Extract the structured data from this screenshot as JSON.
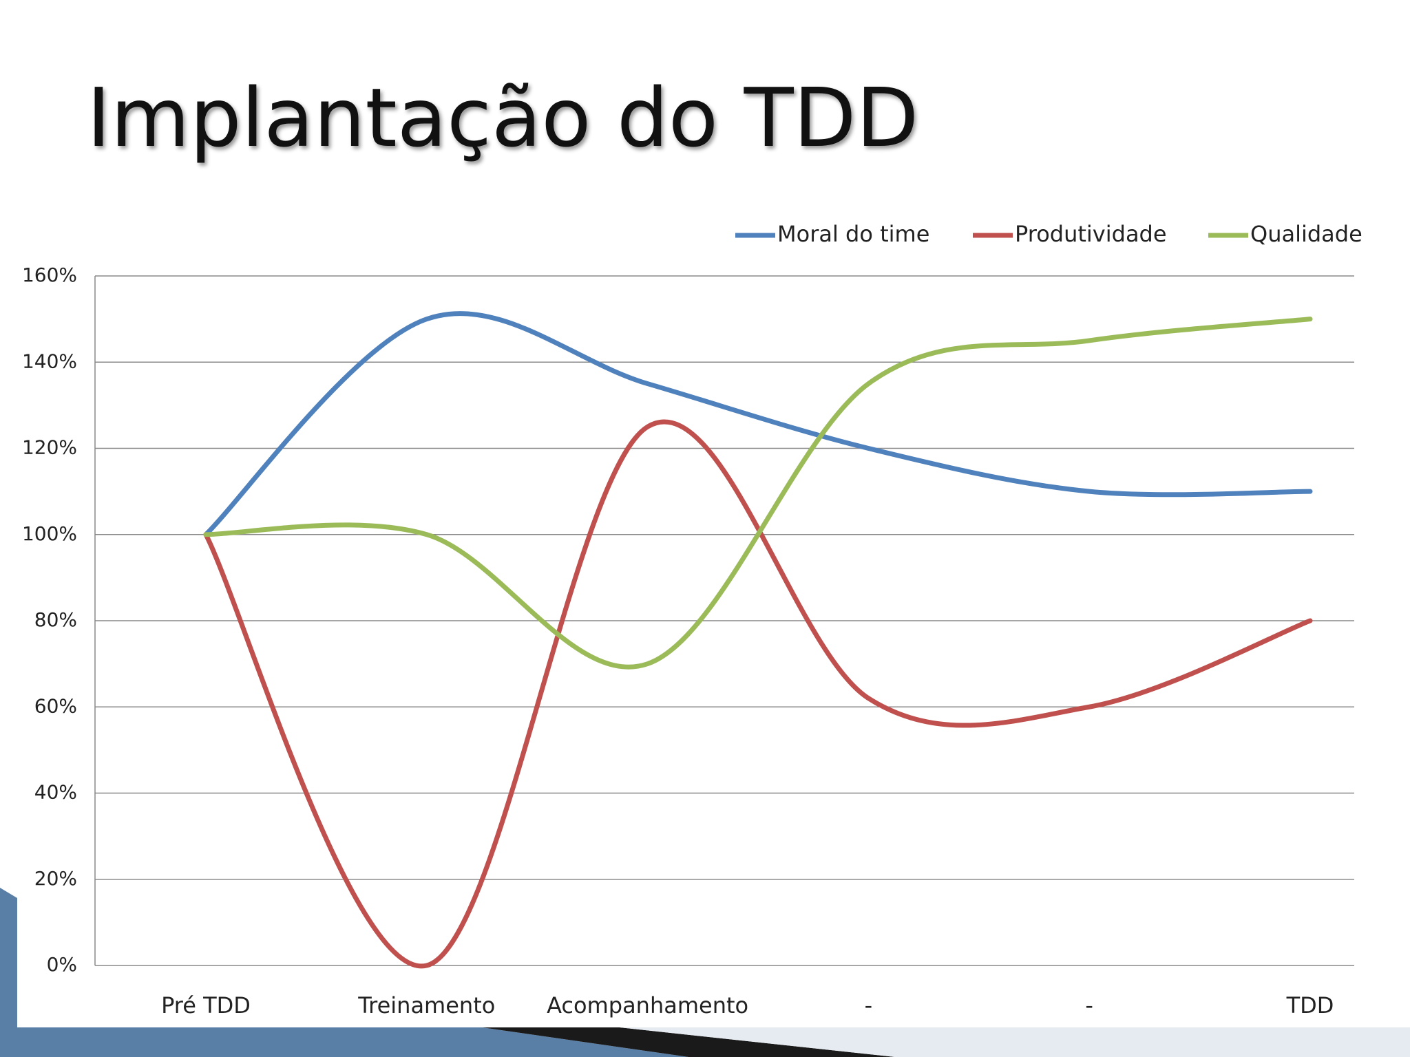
{
  "chart_data": {
    "type": "line",
    "title": "Implantação do TDD",
    "categories": [
      "Pré TDD",
      "Treinamento",
      "Acompanhamento",
      "-",
      "-",
      "TDD"
    ],
    "series": [
      {
        "name": "Moral do time",
        "color": "#4f81bd",
        "values": [
          100,
          150,
          135,
          120,
          110,
          110
        ]
      },
      {
        "name": "Produtividade",
        "color": "#c0504d",
        "values": [
          100,
          0,
          125,
          62,
          60,
          80
        ]
      },
      {
        "name": "Qualidade",
        "color": "#9bbb59",
        "values": [
          100,
          100,
          70,
          135,
          145,
          150
        ]
      }
    ],
    "ylim": [
      0,
      160
    ],
    "yticks": [
      {
        "value": 0,
        "label": "0%"
      },
      {
        "value": 20,
        "label": "20%"
      },
      {
        "value": 40,
        "label": "40%"
      },
      {
        "value": 60,
        "label": "60%"
      },
      {
        "value": 80,
        "label": "80%"
      },
      {
        "value": 100,
        "label": "100%"
      },
      {
        "value": 120,
        "label": "120%"
      },
      {
        "value": 140,
        "label": "140%"
      },
      {
        "value": 160,
        "label": "160%"
      }
    ],
    "grid": true,
    "legend": "top",
    "smooth": true
  }
}
